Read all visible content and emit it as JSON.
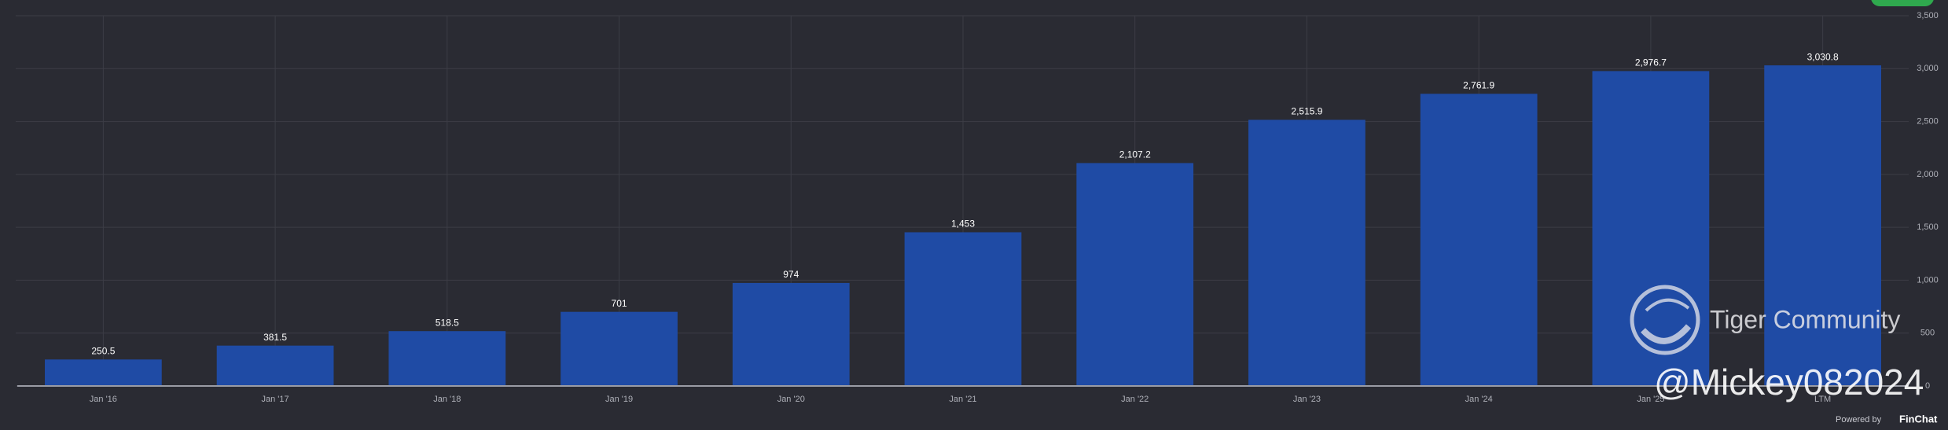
{
  "chart_data": {
    "type": "bar",
    "categories": [
      "Jan '16",
      "Jan '17",
      "Jan '18",
      "Jan '19",
      "Jan '20",
      "Jan '21",
      "Jan '22",
      "Jan '23",
      "Jan '24",
      "Jan '25",
      "LTM"
    ],
    "values": [
      250.5,
      381.5,
      518.5,
      701,
      974,
      1453,
      2107.2,
      2515.9,
      2761.9,
      2976.7,
      3030.8
    ],
    "value_labels": [
      "250.5",
      "381.5",
      "518.5",
      "701",
      "974",
      "1,453",
      "2,107.2",
      "2,515.9",
      "2,761.9",
      "2,976.7",
      "3,030.8"
    ],
    "color": "#1f4ba5",
    "ylim": [
      0,
      3500
    ],
    "yticks": [
      0,
      500,
      {
        "value": 1000,
        "label": "1,000"
      },
      {
        "value": 1500,
        "label": "1,500"
      },
      {
        "value": 2000,
        "label": "2,000"
      },
      {
        "value": 2500,
        "label": "2,500"
      },
      {
        "value": 3000,
        "label": "3,000"
      },
      {
        "value": 3500,
        "label": "3,500"
      }
    ],
    "grid": true,
    "watermark": [
      "Tiger Community",
      "@Mickey082024"
    ],
    "footer": [
      "Powered by",
      "FinChat"
    ]
  }
}
